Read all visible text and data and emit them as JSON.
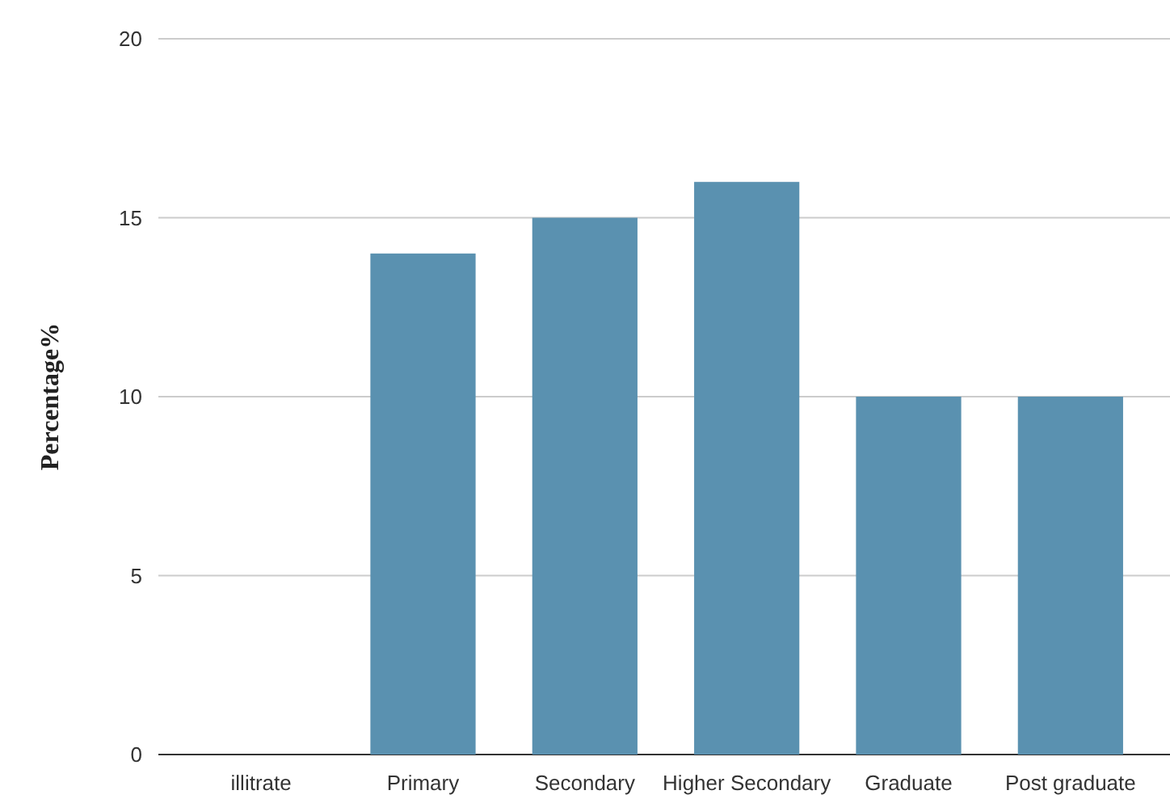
{
  "chart_data": {
    "type": "bar",
    "ylabel": "Percentage%",
    "categories": [
      "illitrate",
      "Primary",
      "Secondary",
      "Higher Secondary",
      "Graduate",
      "Post graduate"
    ],
    "values": [
      0,
      14,
      15,
      16,
      10,
      10
    ],
    "color": "#5a91b0",
    "ylim": [
      0,
      20
    ],
    "yticks": [
      0,
      5,
      10,
      15,
      20
    ],
    "grid": "y"
  }
}
